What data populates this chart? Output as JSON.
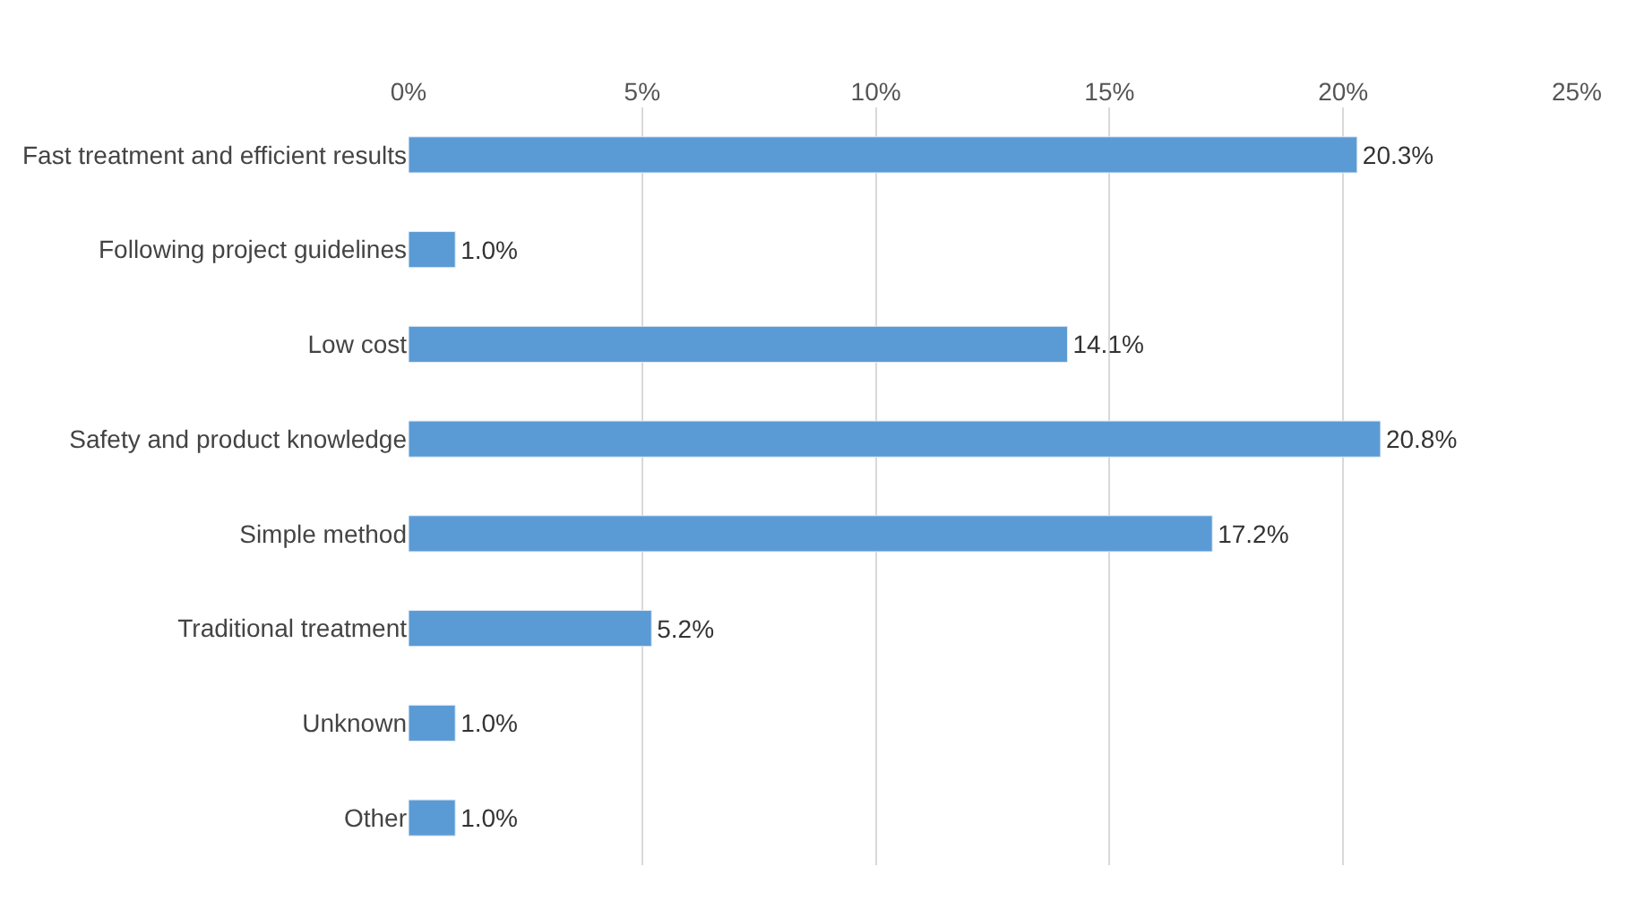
{
  "chart_data": {
    "type": "bar",
    "orientation": "horizontal",
    "categories": [
      "Fast treatment and efficient results",
      "Following project guidelines",
      "Low cost",
      "Safety and product knowledge",
      "Simple method",
      "Traditional treatment",
      "Unknown",
      "Other"
    ],
    "values": [
      20.3,
      1.0,
      14.1,
      20.8,
      17.2,
      5.2,
      1.0,
      1.0
    ],
    "value_labels": [
      "20.3%",
      "1.0%",
      "14.1%",
      "20.8%",
      "17.2%",
      "5.2%",
      "1.0%",
      "1.0%"
    ],
    "color": "#5b9bd5",
    "xlim": [
      0,
      25
    ],
    "xticks": [
      {
        "value": 0,
        "label": "0%"
      },
      {
        "value": 5,
        "label": "5%"
      },
      {
        "value": 10,
        "label": "10%"
      },
      {
        "value": 15,
        "label": "15%"
      },
      {
        "value": 20,
        "label": "20%"
      },
      {
        "value": 25,
        "label": "25%"
      }
    ],
    "grid": "x",
    "legend": false
  }
}
